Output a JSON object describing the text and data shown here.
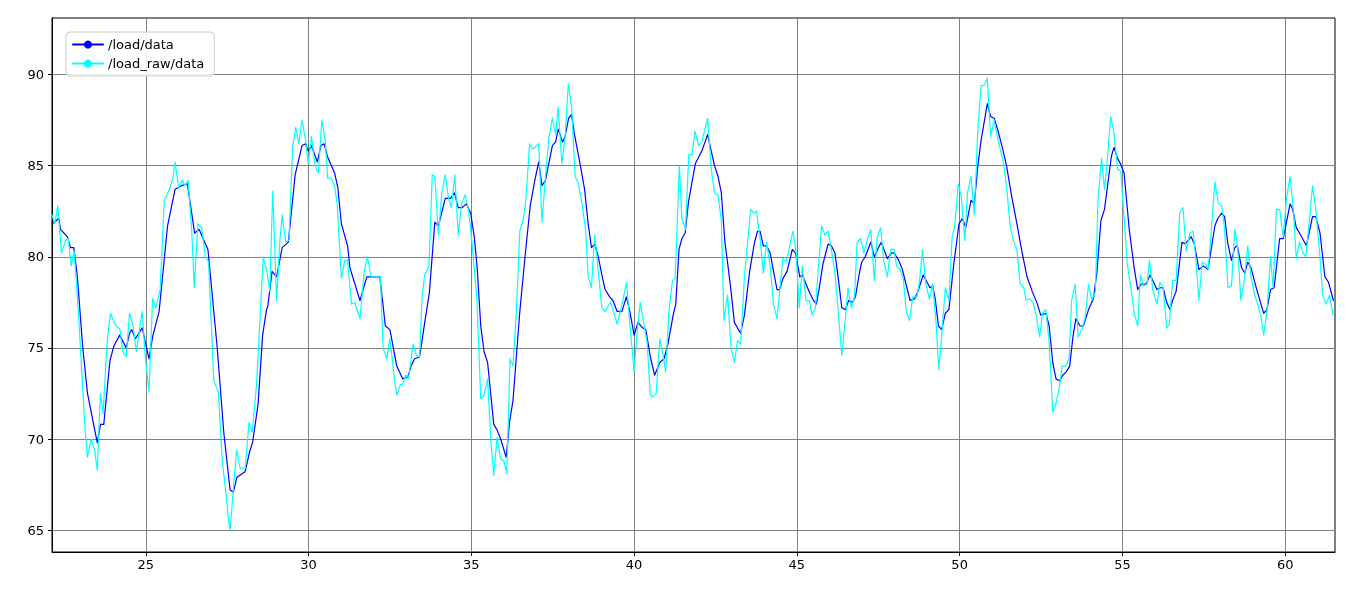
{
  "chart_data": {
    "type": "line",
    "xlim": [
      22.12,
      61.53
    ],
    "ylim": [
      63.8,
      93.1
    ],
    "xticks": [
      25,
      30,
      35,
      40,
      45,
      50,
      55,
      60
    ],
    "yticks": [
      65,
      70,
      75,
      80,
      85,
      90
    ],
    "grid": true,
    "legend": "top left",
    "marker": "none",
    "line_style": "solid",
    "series": [
      {
        "name": "/load/data",
        "color": "#0000ff",
        "x": [
          22.12,
          22.33,
          22.38,
          22.59,
          22.69,
          22.79,
          22.9,
          23.06,
          23.21,
          23.51,
          23.61,
          23.71,
          23.9,
          24.02,
          24.2,
          24.4,
          24.5,
          24.57,
          24.68,
          24.89,
          25.1,
          25.21,
          25.41,
          25.67,
          25.9,
          26.1,
          26.28,
          26.5,
          26.64,
          26.91,
          27.19,
          27.4,
          27.59,
          27.69,
          27.8,
          28.05,
          28.19,
          28.28,
          28.45,
          28.59,
          28.71,
          28.75,
          28.88,
          29.02,
          29.19,
          29.38,
          29.59,
          29.8,
          29.91,
          29.99,
          30.09,
          30.27,
          30.38,
          30.48,
          30.58,
          30.8,
          30.9,
          31.01,
          31.2,
          31.27,
          31.58,
          31.79,
          32.19,
          32.36,
          32.5,
          32.71,
          32.89,
          33.05,
          33.15,
          33.26,
          33.41,
          33.57,
          33.71,
          33.88,
          33.99,
          34.2,
          34.36,
          34.48,
          34.6,
          34.72,
          34.85,
          34.98,
          35.09,
          35.18,
          35.29,
          35.39,
          35.5,
          35.69,
          35.79,
          35.92,
          36.07,
          36.18,
          36.28,
          36.49,
          36.65,
          36.81,
          36.94,
          37.07,
          37.17,
          37.28,
          37.49,
          37.59,
          37.67,
          37.8,
          37.88,
          37.99,
          38.08,
          38.17,
          38.33,
          38.48,
          38.59,
          38.69,
          38.79,
          38.9,
          39.01,
          39.11,
          39.25,
          39.35,
          39.48,
          39.63,
          39.76,
          39.87,
          40.0,
          40.12,
          40.26,
          40.36,
          40.5,
          40.63,
          40.79,
          40.92,
          41.05,
          41.2,
          41.28,
          41.38,
          41.47,
          41.57,
          41.67,
          41.88,
          42.08,
          42.26,
          42.37,
          42.47,
          42.58,
          42.68,
          42.79,
          42.87,
          42.98,
          43.08,
          43.27,
          43.39,
          43.55,
          43.69,
          43.79,
          43.87,
          43.97,
          44.07,
          44.18,
          44.39,
          44.47,
          44.57,
          44.7,
          44.86,
          44.96,
          45.09,
          45.17,
          45.28,
          45.4,
          45.51,
          45.6,
          45.68,
          45.8,
          45.96,
          46.06,
          46.17,
          46.28,
          46.38,
          46.49,
          46.59,
          46.7,
          46.8,
          46.91,
          46.99,
          47.1,
          47.27,
          47.38,
          47.48,
          47.59,
          47.78,
          47.9,
          47.99,
          48.13,
          48.24,
          48.38,
          48.48,
          48.62,
          48.72,
          48.88,
          49.09,
          49.17,
          49.25,
          49.35,
          49.45,
          49.56,
          49.67,
          49.82,
          49.98,
          50.08,
          50.19,
          50.35,
          50.45,
          50.56,
          50.66,
          50.85,
          50.95,
          51.06,
          51.18,
          51.31,
          51.44,
          51.6,
          51.76,
          51.9,
          52.07,
          52.23,
          52.39,
          52.49,
          52.65,
          52.75,
          52.86,
          52.96,
          53.07,
          53.17,
          53.28,
          53.38,
          53.48,
          53.57,
          53.7,
          53.8,
          53.96,
          54.11,
          54.22,
          54.34,
          54.45,
          54.66,
          54.74,
          54.85,
          54.94,
          55.05,
          55.21,
          55.36,
          55.47,
          55.57,
          55.73,
          55.85,
          55.96,
          56.06,
          56.17,
          56.25,
          56.36,
          56.46,
          56.54,
          56.65,
          56.83,
          56.93,
          57.11,
          57.21,
          57.35,
          57.49,
          57.63,
          57.84,
          57.93,
          58.05,
          58.14,
          58.24,
          58.35,
          58.45,
          58.53,
          58.66,
          58.76,
          58.85,
          58.95,
          59.08,
          59.24,
          59.34,
          59.44,
          59.55,
          59.66,
          59.83,
          59.94,
          60.15,
          60.23,
          60.34,
          60.44,
          60.65,
          60.84,
          60.94,
          61.07,
          61.22,
          61.33,
          61.48
        ],
        "values": [
          81.8,
          82.1,
          81.5,
          81.1,
          80.5,
          80.5,
          78.9,
          75.1,
          72.5,
          69.8,
          70.8,
          70.8,
          74.3,
          75.1,
          75.7,
          75.0,
          75.8,
          76.0,
          75.5,
          76.1,
          74.4,
          75.6,
          77.0,
          81.7,
          83.7,
          83.9,
          84.0,
          81.3,
          81.5,
          80.4,
          75.1,
          70.3,
          67.2,
          67.1,
          67.9,
          68.2,
          69.3,
          69.8,
          71.9,
          75.7,
          77.1,
          77.3,
          79.2,
          78.9,
          80.5,
          80.8,
          84.5,
          86.1,
          86.2,
          85.8,
          86.1,
          85.2,
          86.1,
          86.2,
          85.5,
          84.6,
          83.8,
          81.8,
          80.6,
          79.4,
          77.6,
          78.9,
          78.9,
          76.2,
          76.0,
          74.0,
          73.3,
          73.4,
          74.0,
          74.4,
          74.5,
          76.4,
          78.0,
          81.9,
          81.7,
          83.2,
          83.2,
          83.5,
          82.7,
          82.7,
          82.9,
          82.4,
          81.1,
          79.4,
          76.2,
          74.8,
          74.2,
          70.8,
          70.5,
          69.9,
          69.0,
          71.0,
          72.1,
          77.0,
          80.0,
          82.8,
          84.1,
          85.2,
          83.9,
          84.2,
          86.1,
          86.3,
          87.0,
          86.3,
          86.6,
          87.6,
          87.8,
          86.7,
          85.2,
          83.7,
          81.8,
          80.5,
          80.7,
          80.0,
          79.0,
          78.2,
          77.8,
          77.6,
          77.0,
          77.0,
          77.8,
          77.0,
          75.7,
          76.4,
          76.1,
          76.0,
          74.5,
          73.5,
          74.2,
          74.4,
          75.3,
          76.8,
          77.4,
          80.4,
          81.0,
          81.3,
          83.0,
          85.1,
          85.8,
          86.7,
          85.8,
          85.0,
          84.4,
          83.5,
          80.8,
          79.7,
          78.1,
          76.4,
          75.8,
          76.8,
          79.2,
          80.7,
          81.4,
          81.4,
          80.6,
          80.6,
          80.2,
          78.2,
          78.2,
          78.8,
          79.2,
          80.4,
          80.2,
          78.9,
          79.0,
          78.5,
          78.0,
          77.6,
          77.4,
          78.2,
          79.6,
          80.7,
          80.6,
          80.2,
          78.7,
          77.2,
          77.1,
          77.6,
          77.5,
          77.8,
          79.0,
          79.7,
          80.0,
          80.8,
          80.0,
          80.4,
          80.8,
          79.9,
          80.2,
          80.2,
          79.8,
          79.3,
          78.3,
          77.6,
          77.7,
          78.1,
          79.0,
          78.3,
          78.4,
          77.7,
          76.2,
          76.0,
          76.9,
          77.1,
          79.6,
          81.8,
          82.1,
          81.6,
          83.1,
          82.9,
          85.0,
          86.4,
          88.4,
          87.7,
          87.6,
          86.9,
          86.0,
          85.0,
          83.3,
          81.8,
          80.4,
          78.9,
          78.1,
          77.4,
          76.8,
          76.9,
          76.2,
          74.2,
          73.3,
          73.2,
          73.5,
          73.7,
          74.0,
          75.6,
          76.6,
          76.2,
          76.2,
          77.1,
          77.7,
          79.2,
          82.0,
          82.6,
          85.5,
          86.0,
          85.4,
          85.1,
          84.6,
          81.5,
          79.4,
          78.2,
          78.5,
          78.5,
          79.0,
          78.6,
          78.2,
          78.3,
          78.3,
          77.5,
          77.1,
          77.6,
          78.1,
          80.8,
          80.7,
          81.1,
          80.7,
          79.3,
          79.5,
          79.3,
          81.7,
          82.1,
          82.4,
          82.2,
          80.7,
          79.8,
          80.5,
          80.6,
          79.4,
          79.1,
          79.7,
          79.4,
          78.5,
          77.5,
          76.9,
          77.1,
          78.2,
          78.3,
          81.0,
          81.0,
          82.9,
          82.6,
          81.6,
          81.3,
          80.6,
          82.2,
          82.2,
          81.3,
          78.9,
          78.6,
          77.6
        ]
      },
      {
        "name": "/load_raw/data",
        "color": "#00ffff",
        "x": [
          22.12,
          22.2,
          22.3,
          22.41,
          22.54,
          22.62,
          22.71,
          22.8,
          22.93,
          23.06,
          23.14,
          23.21,
          23.32,
          23.43,
          23.51,
          23.61,
          23.69,
          23.81,
          23.92,
          24.05,
          24.21,
          24.29,
          24.4,
          24.5,
          24.61,
          24.71,
          24.89,
          24.99,
          25.1,
          25.21,
          25.31,
          25.44,
          25.57,
          25.73,
          25.83,
          25.9,
          26.01,
          26.12,
          26.2,
          26.3,
          26.41,
          26.49,
          26.6,
          26.72,
          26.83,
          26.93,
          27.09,
          27.23,
          27.35,
          27.46,
          27.54,
          27.59,
          27.69,
          27.79,
          27.9,
          28.06,
          28.17,
          28.27,
          28.4,
          28.61,
          28.73,
          28.81,
          28.9,
          29.02,
          29.12,
          29.19,
          29.3,
          29.4,
          29.51,
          29.61,
          29.7,
          29.8,
          29.91,
          29.99,
          30.09,
          30.2,
          30.3,
          30.41,
          30.51,
          30.59,
          30.69,
          30.8,
          30.88,
          31.01,
          31.11,
          31.2,
          31.32,
          31.42,
          31.58,
          31.71,
          31.81,
          31.92,
          32.09,
          32.21,
          32.29,
          32.4,
          32.5,
          32.63,
          32.71,
          32.82,
          32.89,
          32.99,
          33.07,
          33.21,
          33.31,
          33.41,
          33.49,
          33.57,
          33.7,
          33.8,
          33.88,
          33.99,
          34.1,
          34.2,
          34.3,
          34.39,
          34.49,
          34.6,
          34.7,
          34.81,
          34.91,
          35.02,
          35.17,
          35.29,
          35.39,
          35.5,
          35.6,
          35.69,
          35.79,
          35.9,
          36.0,
          36.09,
          36.19,
          36.28,
          36.39,
          36.49,
          36.6,
          36.67,
          36.79,
          36.89,
          37.07,
          37.17,
          37.28,
          37.38,
          37.49,
          37.59,
          37.67,
          37.78,
          37.88,
          37.98,
          38.08,
          38.19,
          38.29,
          38.41,
          38.51,
          38.59,
          38.69,
          38.79,
          38.9,
          39.01,
          39.11,
          39.27,
          39.35,
          39.48,
          39.63,
          39.77,
          39.87,
          40.0,
          40.08,
          40.19,
          40.31,
          40.4,
          40.5,
          40.58,
          40.68,
          40.79,
          40.89,
          40.97,
          41.07,
          41.18,
          41.26,
          41.39,
          41.47,
          41.58,
          41.68,
          41.78,
          41.87,
          41.98,
          42.08,
          42.26,
          42.37,
          42.47,
          42.58,
          42.68,
          42.76,
          42.87,
          42.98,
          43.08,
          43.18,
          43.27,
          43.39,
          43.58,
          43.69,
          43.76,
          43.87,
          43.97,
          44.07,
          44.18,
          44.28,
          44.39,
          44.49,
          44.57,
          44.67,
          44.78,
          44.88,
          44.98,
          45.07,
          45.17,
          45.28,
          45.38,
          45.47,
          45.57,
          45.67,
          45.76,
          45.86,
          45.96,
          46.06,
          46.17,
          46.28,
          46.38,
          46.49,
          46.57,
          46.67,
          46.77,
          46.85,
          46.96,
          47.06,
          47.17,
          47.27,
          47.38,
          47.46,
          47.57,
          47.67,
          47.78,
          47.88,
          47.99,
          48.06,
          48.17,
          48.27,
          48.36,
          48.46,
          48.56,
          48.69,
          48.77,
          48.86,
          48.96,
          49.07,
          49.17,
          49.28,
          49.36,
          49.45,
          49.56,
          49.67,
          49.77,
          49.84,
          49.96,
          50.05,
          50.16,
          50.24,
          50.35,
          50.45,
          50.56,
          50.66,
          50.76,
          50.85,
          50.95,
          51.06,
          51.18,
          51.34,
          51.45,
          51.55,
          51.65,
          51.76,
          51.86,
          51.97,
          52.04,
          52.15,
          52.25,
          52.36,
          52.46,
          52.54,
          52.65,
          52.75,
          52.86,
          52.94,
          53.05,
          53.15,
          53.26,
          53.36,
          53.44,
          53.55,
          53.64,
          53.75,
          53.85,
          53.96,
          54.06,
          54.17,
          54.25,
          54.36,
          54.45,
          54.54,
          54.64,
          54.74,
          54.85,
          54.95,
          55.15,
          55.26,
          55.36,
          55.47,
          55.55,
          55.65,
          55.76,
          55.83,
          55.94,
          56.06,
          56.15,
          56.25,
          56.36,
          56.44,
          56.54,
          56.65,
          56.76,
          56.86,
          56.96,
          57.07,
          57.17,
          57.25,
          57.35,
          57.45,
          57.56,
          57.64,
          57.74,
          57.84,
          57.95,
          58.05,
          58.14,
          58.24,
          58.35,
          58.45,
          58.53,
          58.64,
          58.74,
          58.85,
          58.95,
          59.06,
          59.16,
          59.27,
          59.34,
          59.44,
          59.55,
          59.63,
          59.73,
          59.83,
          59.94,
          60.04,
          60.15,
          60.26,
          60.34,
          60.44,
          60.55,
          60.63,
          60.74,
          60.84,
          60.94,
          61.05,
          61.15,
          61.26,
          61.36,
          61.47
        ],
        "values": [
          82.3,
          81.8,
          82.8,
          80.2,
          80.9,
          81.0,
          79.5,
          80.3,
          77.0,
          72.9,
          70.4,
          69.0,
          70.0,
          69.4,
          68.3,
          72.5,
          71.4,
          75.3,
          76.9,
          76.3,
          76.0,
          74.8,
          74.5,
          76.9,
          76.2,
          74.8,
          77.0,
          74.4,
          72.6,
          77.7,
          77.2,
          78.2,
          83.1,
          83.7,
          84.3,
          85.2,
          83.8,
          84.2,
          83.9,
          84.2,
          81.5,
          78.3,
          81.8,
          81.6,
          80.0,
          79.7,
          73.2,
          72.6,
          68.8,
          67.1,
          65.6,
          65.0,
          67.2,
          69.4,
          68.4,
          68.4,
          70.9,
          70.4,
          72.9,
          80.0,
          79.1,
          78.1,
          83.6,
          77.6,
          80.9,
          82.3,
          80.8,
          80.9,
          86.0,
          87.1,
          86.2,
          87.5,
          86.4,
          85.1,
          86.6,
          85.0,
          84.6,
          87.5,
          86.4,
          84.3,
          84.3,
          83.9,
          82.9,
          78.8,
          79.8,
          79.8,
          77.4,
          77.5,
          76.6,
          79.2,
          80.0,
          78.9,
          78.9,
          78.9,
          75.0,
          74.4,
          75.5,
          73.4,
          72.4,
          73.0,
          73.0,
          73.5,
          73.3,
          75.2,
          74.6,
          74.5,
          77.9,
          79.0,
          79.5,
          84.5,
          84.4,
          81.2,
          83.6,
          84.5,
          83.2,
          82.7,
          84.5,
          81.2,
          82.9,
          83.4,
          82.6,
          80.8,
          77.7,
          72.2,
          72.4,
          73.3,
          69.9,
          68.0,
          70.1,
          68.9,
          68.8,
          68.1,
          74.4,
          74.0,
          77.2,
          81.4,
          82.1,
          83.0,
          86.2,
          85.9,
          86.2,
          81.9,
          84.4,
          86.5,
          87.6,
          86.7,
          88.2,
          85.1,
          86.5,
          89.5,
          88.2,
          84.4,
          84.0,
          82.8,
          81.5,
          78.9,
          78.3,
          81.2,
          79.2,
          77.2,
          77.0,
          77.5,
          77.1,
          76.3,
          77.4,
          78.6,
          76.3,
          73.7,
          75.6,
          77.5,
          76.2,
          75.3,
          72.4,
          72.3,
          72.5,
          75.5,
          74.6,
          73.7,
          77.0,
          78.7,
          78.8,
          85.0,
          82.1,
          81.5,
          85.6,
          85.6,
          86.9,
          86.1,
          86.3,
          87.6,
          84.8,
          83.5,
          83.4,
          82.0,
          76.5,
          77.9,
          75.0,
          74.2,
          75.4,
          75.2,
          78.9,
          82.6,
          82.4,
          82.5,
          81.0,
          79.1,
          80.8,
          79.5,
          77.4,
          76.6,
          78.5,
          79.9,
          79.7,
          80.6,
          81.4,
          80.2,
          77.2,
          79.5,
          77.6,
          77.6,
          76.8,
          77.2,
          79.6,
          81.7,
          81.2,
          81.4,
          80.4,
          79.1,
          76.8,
          74.6,
          76.6,
          78.3,
          77.2,
          77.8,
          80.8,
          81.0,
          80.2,
          81.0,
          81.5,
          78.7,
          81.0,
          81.6,
          79.8,
          78.9,
          80.4,
          80.4,
          79.5,
          79.3,
          78.8,
          77.0,
          76.5,
          77.8,
          77.8,
          78.7,
          80.4,
          78.5,
          77.7,
          78.5,
          76.3,
          73.8,
          75.7,
          78.3,
          77.6,
          81.1,
          81.6,
          84.0,
          83.3,
          80.9,
          83.5,
          84.4,
          82.3,
          87.0,
          89.4,
          89.4,
          89.8,
          86.6,
          87.5,
          86.4,
          85.2,
          83.7,
          81.7,
          80.9,
          80.4,
          78.5,
          78.3,
          77.6,
          77.7,
          77.5,
          76.7,
          75.6,
          76.9,
          77.1,
          75.3,
          71.5,
          71.8,
          72.7,
          74.0,
          74.0,
          74.4,
          77.6,
          78.5,
          75.6,
          76.0,
          76.6,
          78.5,
          77.6,
          78.1,
          83.1,
          85.4,
          83.7,
          85.4,
          87.7,
          86.8,
          84.8,
          84.7,
          79.6,
          78.3,
          76.9,
          76.2,
          79.0,
          78.4,
          78.5,
          79.8,
          78.1,
          77.4,
          78.6,
          78.3,
          76.1,
          76.3,
          78.7,
          78.7,
          82.4,
          82.7,
          80.3,
          81.3,
          81.4,
          80.0,
          77.6,
          79.7,
          79.6,
          79.3,
          81.7,
          84.1,
          82.9,
          82.8,
          81.5,
          78.3,
          78.4,
          81.5,
          80.7,
          77.6,
          78.7,
          80.6,
          78.9,
          77.9,
          77.4,
          76.6,
          75.7,
          77.0,
          80.0,
          78.3,
          82.6,
          82.6,
          81.1,
          83.2,
          84.4,
          82.4,
          79.9,
          80.8,
          80.2,
          80.0,
          81.9,
          83.9,
          82.6,
          80.4,
          77.9,
          77.4,
          77.9,
          76.8
        ]
      }
    ]
  }
}
